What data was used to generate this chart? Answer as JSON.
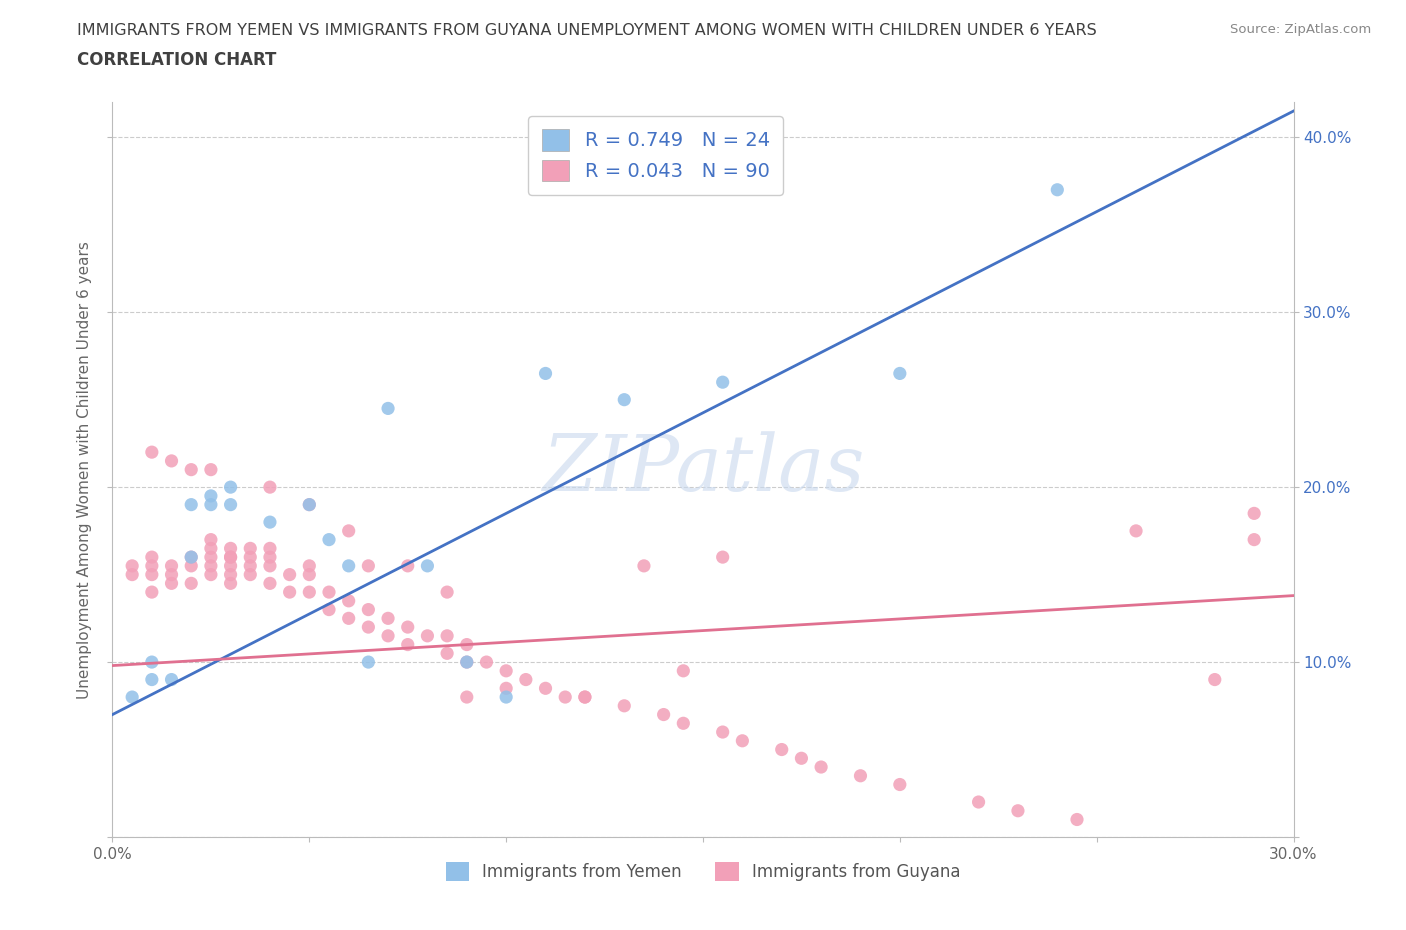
{
  "title_line1": "IMMIGRANTS FROM YEMEN VS IMMIGRANTS FROM GUYANA UNEMPLOYMENT AMONG WOMEN WITH CHILDREN UNDER 6 YEARS",
  "title_line2": "CORRELATION CHART",
  "source_text": "Source: ZipAtlas.com",
  "ylabel": "Unemployment Among Women with Children Under 6 years",
  "watermark": "ZIPatlas",
  "xlim": [
    0.0,
    0.3
  ],
  "ylim": [
    0.0,
    0.42
  ],
  "xticks": [
    0.0,
    0.05,
    0.1,
    0.15,
    0.2,
    0.25,
    0.3
  ],
  "yticks": [
    0.0,
    0.1,
    0.2,
    0.3,
    0.4
  ],
  "xticklabels_show": {
    "0": "0.0%",
    "6": "30.0%"
  },
  "yticklabels_right": [
    "",
    "10.0%",
    "20.0%",
    "30.0%",
    "40.0%"
  ],
  "yemen_color": "#92c0e8",
  "guyana_color": "#f2a0b8",
  "yemen_line_color": "#4472c4",
  "guyana_line_color": "#e07090",
  "legend_text_color": "#4472c4",
  "title_color": "#404040",
  "yemen_R": 0.749,
  "yemen_N": 24,
  "guyana_R": 0.043,
  "guyana_N": 90,
  "yemen_line_x0": 0.0,
  "yemen_line_y0": 0.07,
  "yemen_line_x1": 0.3,
  "yemen_line_y1": 0.415,
  "guyana_line_x0": 0.0,
  "guyana_line_y0": 0.098,
  "guyana_line_x1": 0.3,
  "guyana_line_y1": 0.138,
  "yemen_scatter_x": [
    0.005,
    0.01,
    0.01,
    0.015,
    0.02,
    0.02,
    0.025,
    0.025,
    0.03,
    0.03,
    0.04,
    0.05,
    0.055,
    0.06,
    0.065,
    0.07,
    0.08,
    0.09,
    0.1,
    0.11,
    0.13,
    0.155,
    0.2,
    0.24
  ],
  "yemen_scatter_y": [
    0.08,
    0.09,
    0.1,
    0.09,
    0.16,
    0.19,
    0.19,
    0.195,
    0.19,
    0.2,
    0.18,
    0.19,
    0.17,
    0.155,
    0.1,
    0.245,
    0.155,
    0.1,
    0.08,
    0.265,
    0.25,
    0.26,
    0.265,
    0.37
  ],
  "guyana_scatter_x": [
    0.005,
    0.005,
    0.01,
    0.01,
    0.01,
    0.01,
    0.015,
    0.015,
    0.015,
    0.02,
    0.02,
    0.02,
    0.025,
    0.025,
    0.025,
    0.025,
    0.025,
    0.03,
    0.03,
    0.03,
    0.03,
    0.03,
    0.035,
    0.035,
    0.035,
    0.04,
    0.04,
    0.04,
    0.04,
    0.045,
    0.045,
    0.05,
    0.05,
    0.05,
    0.055,
    0.055,
    0.06,
    0.06,
    0.065,
    0.065,
    0.07,
    0.07,
    0.075,
    0.075,
    0.08,
    0.085,
    0.085,
    0.09,
    0.09,
    0.095,
    0.1,
    0.105,
    0.11,
    0.115,
    0.12,
    0.13,
    0.14,
    0.145,
    0.155,
    0.16,
    0.17,
    0.175,
    0.18,
    0.19,
    0.2,
    0.22,
    0.23,
    0.245,
    0.26,
    0.28,
    0.01,
    0.015,
    0.02,
    0.025,
    0.03,
    0.035,
    0.04,
    0.05,
    0.06,
    0.065,
    0.075,
    0.085,
    0.09,
    0.1,
    0.12,
    0.135,
    0.145,
    0.155,
    0.29,
    0.29
  ],
  "guyana_scatter_y": [
    0.15,
    0.155,
    0.14,
    0.15,
    0.155,
    0.16,
    0.145,
    0.15,
    0.155,
    0.145,
    0.155,
    0.16,
    0.15,
    0.155,
    0.16,
    0.165,
    0.17,
    0.145,
    0.15,
    0.155,
    0.16,
    0.165,
    0.15,
    0.155,
    0.16,
    0.145,
    0.155,
    0.16,
    0.165,
    0.14,
    0.15,
    0.14,
    0.15,
    0.155,
    0.13,
    0.14,
    0.125,
    0.135,
    0.12,
    0.13,
    0.115,
    0.125,
    0.11,
    0.12,
    0.115,
    0.105,
    0.115,
    0.1,
    0.11,
    0.1,
    0.095,
    0.09,
    0.085,
    0.08,
    0.08,
    0.075,
    0.07,
    0.065,
    0.06,
    0.055,
    0.05,
    0.045,
    0.04,
    0.035,
    0.03,
    0.02,
    0.015,
    0.01,
    0.175,
    0.09,
    0.22,
    0.215,
    0.21,
    0.21,
    0.16,
    0.165,
    0.2,
    0.19,
    0.175,
    0.155,
    0.155,
    0.14,
    0.08,
    0.085,
    0.08,
    0.155,
    0.095,
    0.16,
    0.17,
    0.185
  ]
}
